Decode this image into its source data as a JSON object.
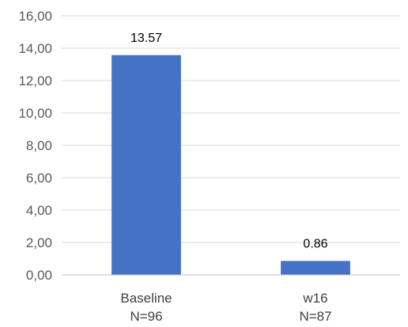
{
  "chart_data": {
    "type": "bar",
    "categories": [
      {
        "line1": "Baseline",
        "line2": "N=96"
      },
      {
        "line1": "w16",
        "line2": "N=87"
      }
    ],
    "values": [
      13.57,
      0.86
    ],
    "data_labels": [
      "13.57",
      "0.86"
    ],
    "ylim": [
      0,
      16
    ],
    "y_ticks": [
      0,
      2,
      4,
      6,
      8,
      10,
      12,
      14,
      16
    ],
    "y_tick_labels": [
      "0,00",
      "2,00",
      "4,00",
      "6,00",
      "8,00",
      "10,00",
      "12,00",
      "14,00",
      "16,00"
    ],
    "grid": true,
    "legend": "none",
    "title": "",
    "xlabel": "",
    "ylabel": "",
    "bar_color": "#4472C4"
  }
}
